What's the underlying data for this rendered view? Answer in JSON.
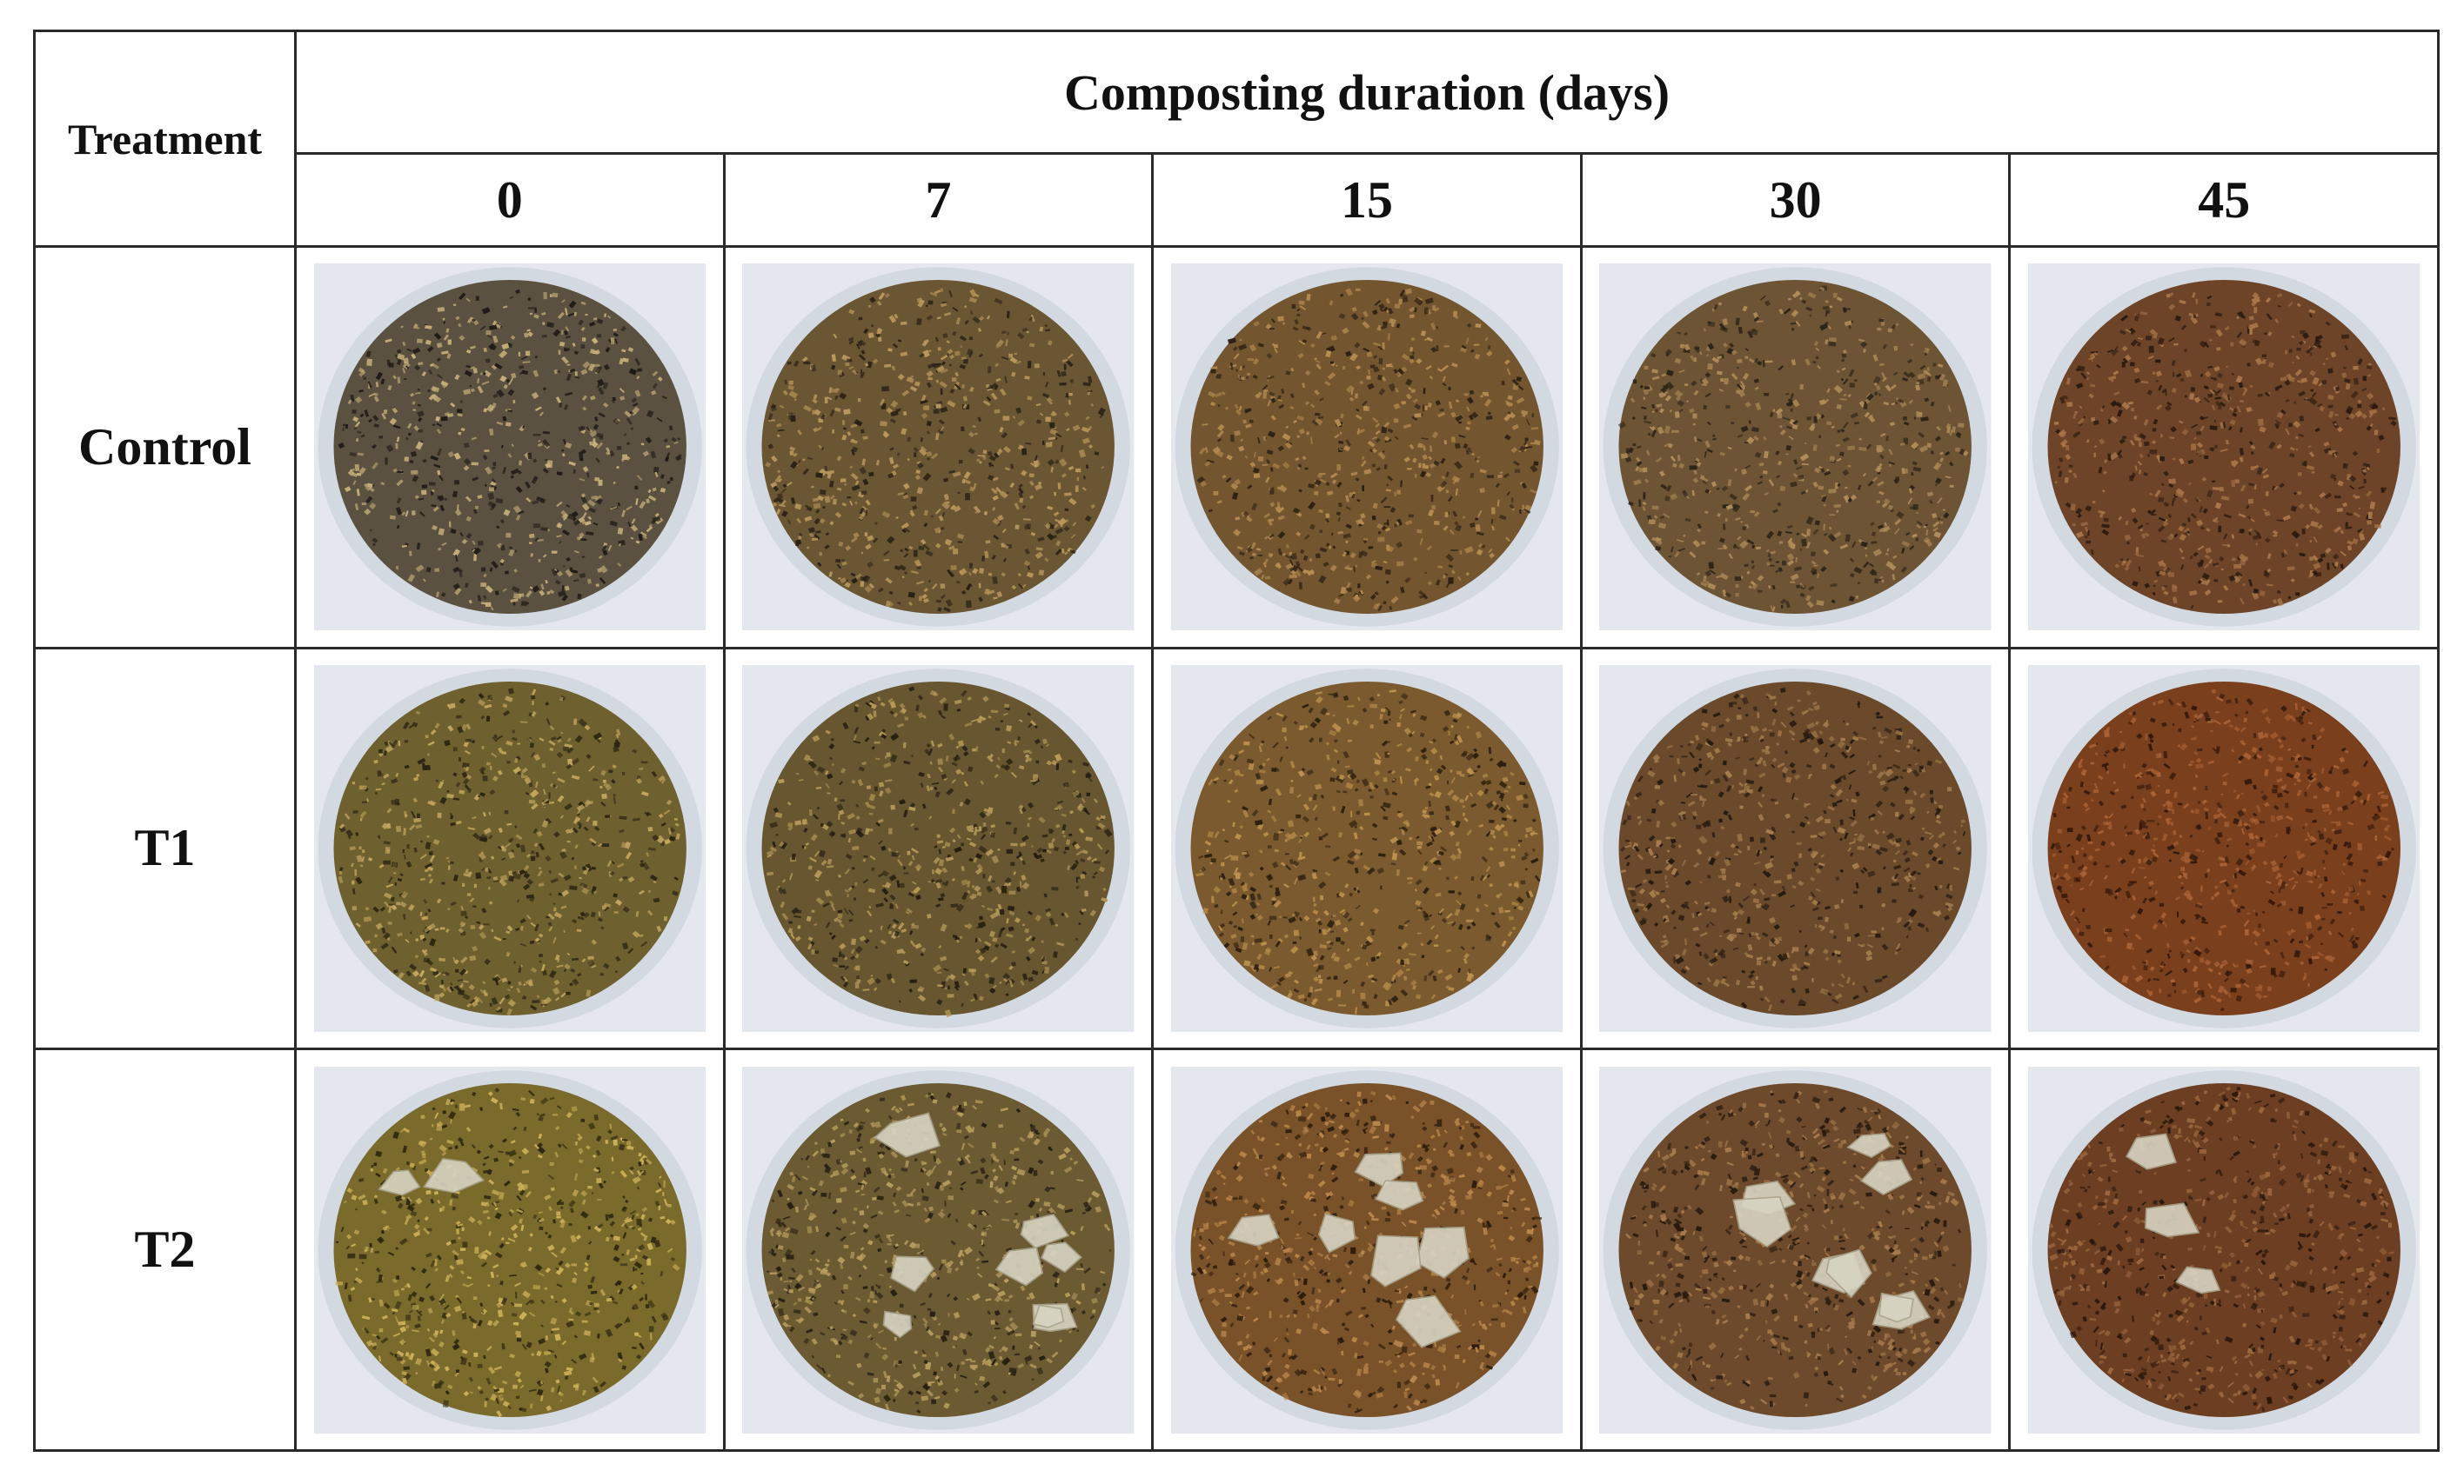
{
  "header": {
    "treatment": "Treatment",
    "duration": "Composting duration (days)",
    "days": [
      "0",
      "7",
      "15",
      "30",
      "45"
    ]
  },
  "rows": [
    {
      "label": "Control",
      "samples": [
        {
          "color": "#5b5140",
          "fleck": "#c6b07a",
          "dark": "#1f1b17",
          "leaves": 0
        },
        {
          "color": "#6b5634",
          "fleck": "#b8985c",
          "dark": "#2a2115",
          "leaves": 0
        },
        {
          "color": "#735530",
          "fleck": "#b58c52",
          "dark": "#2d2012",
          "leaves": 0
        },
        {
          "color": "#6c5434",
          "fleck": "#b08d5b",
          "dark": "#2d2317",
          "leaves": 0
        },
        {
          "color": "#6d4427",
          "fleck": "#a8764a",
          "dark": "#2b1a10",
          "leaves": 0
        }
      ]
    },
    {
      "label": "T1",
      "samples": [
        {
          "color": "#6f6030",
          "fleck": "#c1a55e",
          "dark": "#2a2412",
          "leaves": 0
        },
        {
          "color": "#675630",
          "fleck": "#b59958",
          "dark": "#251d10",
          "leaves": 0
        },
        {
          "color": "#7a5a2e",
          "fleck": "#bd914f",
          "dark": "#2c1e0f",
          "leaves": 0
        },
        {
          "color": "#6a4a2b",
          "fleck": "#a57d4e",
          "dark": "#271910",
          "leaves": 0
        },
        {
          "color": "#7a3f1d",
          "fleck": "#a86236",
          "dark": "#33180b",
          "leaves": 0
        }
      ]
    },
    {
      "label": "T2",
      "samples": [
        {
          "color": "#7a6a2c",
          "fleck": "#cbb05a",
          "dark": "#2e2710",
          "leaves": 2
        },
        {
          "color": "#6b5a32",
          "fleck": "#b79c5e",
          "dark": "#271f12",
          "leaves": 8
        },
        {
          "color": "#7a5229",
          "fleck": "#b8874c",
          "dark": "#2d1c0d",
          "leaves": 7
        },
        {
          "color": "#6d4a2b",
          "fleck": "#a67a4c",
          "dark": "#281a0f",
          "leaves": 8
        },
        {
          "color": "#6d3f22",
          "fleck": "#9c6840",
          "dark": "#2a170b",
          "leaves": 3
        }
      ]
    }
  ]
}
